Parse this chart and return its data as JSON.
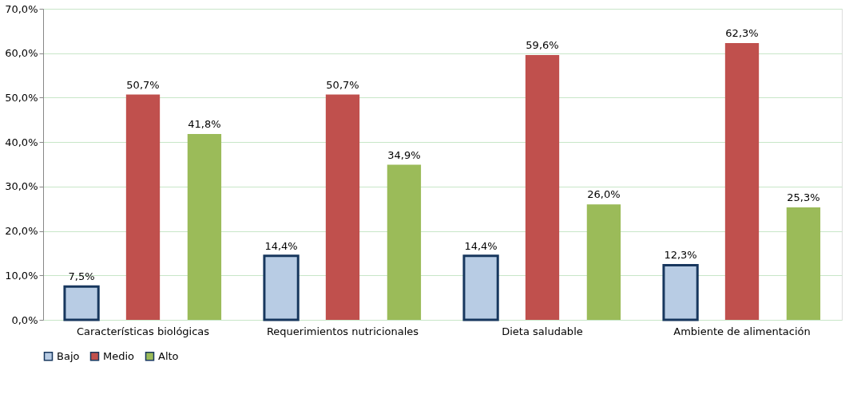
{
  "chart_data": {
    "type": "bar",
    "categories": [
      "Características biológicas",
      "Requerimientos nutricionales",
      "Dieta saludable",
      "Ambiente de alimentación"
    ],
    "series": [
      {
        "name": "Bajo",
        "color": "#b8cce4",
        "values": [
          7.5,
          14.4,
          14.4,
          12.3
        ],
        "value_labels": [
          "7,5%",
          "14,4%",
          "14,4%",
          "12,3%"
        ]
      },
      {
        "name": "Medio",
        "color": "#c0504d",
        "values": [
          50.7,
          50.7,
          59.6,
          62.3
        ],
        "value_labels": [
          "50,7%",
          "50,7%",
          "59,6%",
          "62,3%"
        ]
      },
      {
        "name": "Alto",
        "color": "#9bbb59",
        "values": [
          41.8,
          34.9,
          26.0,
          25.3
        ],
        "value_labels": [
          "41,8%",
          "34,9%",
          "26,0%",
          "25,3%"
        ]
      }
    ],
    "ylim": [
      0,
      70
    ],
    "yticks": [
      {
        "value": 0,
        "label": "0,0%"
      },
      {
        "value": 10,
        "label": "10,0%"
      },
      {
        "value": 20,
        "label": "20,0%"
      },
      {
        "value": 30,
        "label": "30,0%"
      },
      {
        "value": 40,
        "label": "40,0%"
      },
      {
        "value": 50,
        "label": "50,0%"
      },
      {
        "value": 60,
        "label": "60,0%"
      },
      {
        "value": 70,
        "label": "70,0%"
      }
    ],
    "grid": "y",
    "legend": "bottom"
  }
}
